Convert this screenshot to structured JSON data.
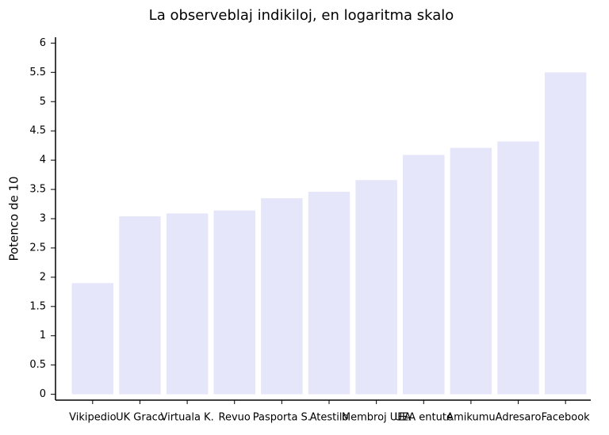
{
  "chart_data": {
    "type": "bar",
    "title": "La observeblaj indikiloj, en logaritma skalo",
    "y_label": "Potenco de 10",
    "categories": [
      "Vikipedio",
      "UK Graco",
      "Virtuala K.",
      "Revuo",
      "Pasporta S.",
      "Atestilo",
      "Membroj UEA",
      "UEA entute",
      "Amikumu",
      "Adresaro",
      "Facebook"
    ],
    "values": [
      1.9,
      3.04,
      3.09,
      3.14,
      3.35,
      3.46,
      3.66,
      4.09,
      4.21,
      4.32,
      5.5
    ],
    "color": "#e6e6fa",
    "ylim": [
      -0.1,
      6.1
    ],
    "yticks": [
      0,
      0.5,
      1,
      1.5,
      2,
      2.5,
      3,
      3.5,
      4,
      4.5,
      5,
      5.5,
      6
    ],
    "grid": false
  }
}
